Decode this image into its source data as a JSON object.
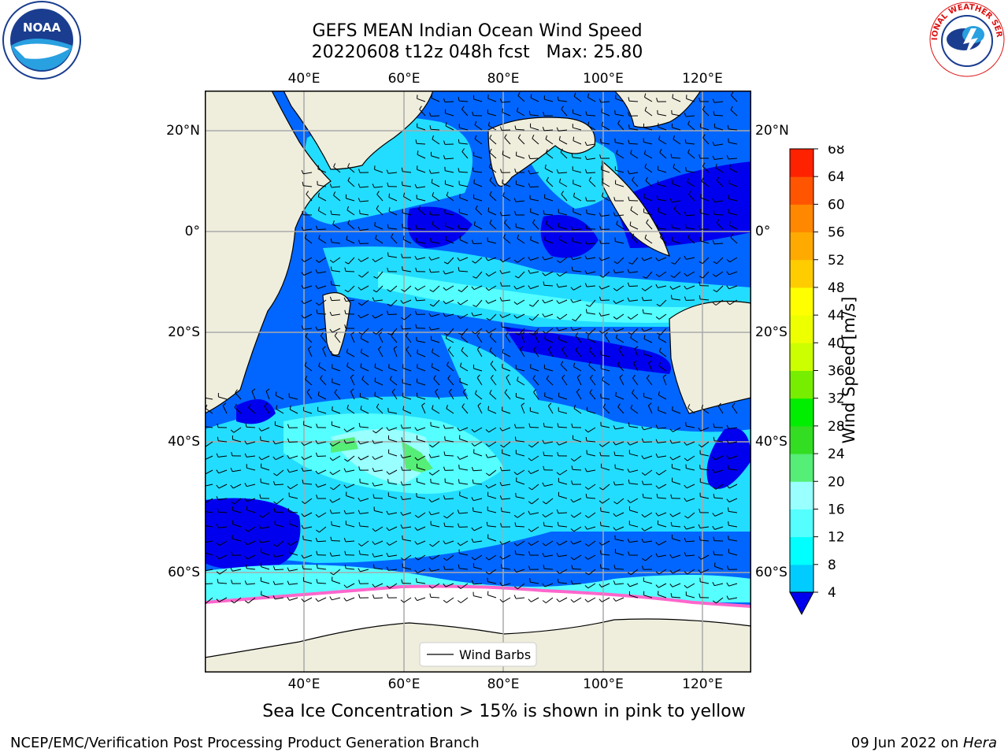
{
  "title_line1": "GEFS MEAN Indian Ocean Wind Speed",
  "title_line2": "20220608 t12z 048h fcst   Max: 25.80",
  "subtitle": "Sea Ice Concentration > 15% is shown in pink to yellow",
  "footer_left": "NCEP/EMC/Verification Post Processing Product Generation Branch",
  "footer_right_date": "09 Jun 2022 on ",
  "footer_right_host": "Hera",
  "legend_label": "Wind Barbs",
  "colorbar": {
    "label": "Wind Speed [m/s]",
    "ticks": [
      "4",
      "8",
      "12",
      "16",
      "20",
      "24",
      "28",
      "32",
      "36",
      "40",
      "44",
      "48",
      "52",
      "56",
      "60",
      "64",
      "68"
    ],
    "colors": [
      "#0066ff",
      "#00ccff",
      "#00ffff",
      "#55ffff",
      "#99ffff",
      "#55ee77",
      "#33dd22",
      "#00ee00",
      "#77ee00",
      "#ccff00",
      "#eeff00",
      "#ffff00",
      "#ffcc00",
      "#ffaa00",
      "#ff8800",
      "#ff5500",
      "#ff2200",
      "#ff0000"
    ],
    "under_color": "#0000ee"
  },
  "map": {
    "lon_labels": [
      "40°E",
      "60°E",
      "80°E",
      "100°E",
      "120°E"
    ],
    "lat_labels_left": [
      "20°N",
      "0°",
      "20°S",
      "40°S",
      "60°S"
    ],
    "lat_labels_right": [
      "20°N",
      "0°",
      "20°S",
      "40°S",
      "60°S"
    ],
    "colors": {
      "land": "#efeedd",
      "ocean_dark": "#0000ee",
      "ocean_mid": "#0066ff",
      "ocean_light": "#22ddff",
      "ocean_pale": "#99ffff",
      "ice": "#ffffff",
      "ice_edge": "#ff66cc"
    }
  },
  "logos": {
    "noaa_text": "NOAA",
    "nws_text": "NATIONAL WEATHER SERVICE"
  }
}
